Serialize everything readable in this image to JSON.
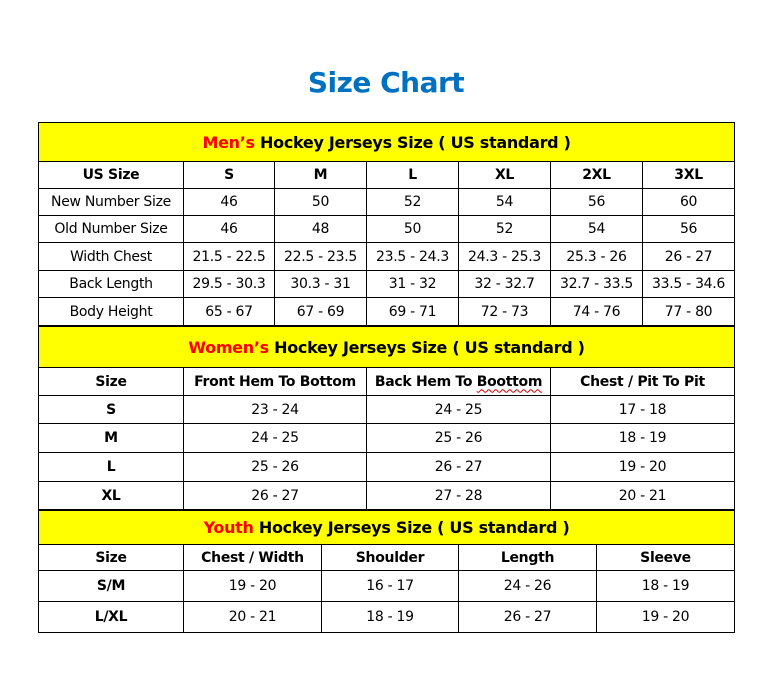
{
  "title": "Size Chart",
  "men": {
    "header_highlight": "Men’s",
    "header_rest": " Hockey Jerseys Size ( US standard )",
    "columns": [
      "US Size",
      "S",
      "M",
      "L",
      "XL",
      "2XL",
      "3XL"
    ],
    "rows": [
      [
        "New Number Size",
        "46",
        "50",
        "52",
        "54",
        "56",
        "60"
      ],
      [
        "Old Number Size",
        "46",
        "48",
        "50",
        "52",
        "54",
        "56"
      ],
      [
        "Width Chest",
        "21.5 - 22.5",
        "22.5 - 23.5",
        "23.5 - 24.3",
        "24.3 - 25.3",
        "25.3 - 26",
        "26 - 27"
      ],
      [
        "Back Length",
        "29.5 - 30.3",
        "30.3 - 31",
        "31 - 32",
        "32 - 32.7",
        "32.7 - 33.5",
        "33.5 - 34.6"
      ],
      [
        "Body Height",
        "65 - 67",
        "67 - 69",
        "69 - 71",
        "72 - 73",
        "74 - 76",
        "77 - 80"
      ]
    ]
  },
  "women": {
    "header_highlight": "Women’s",
    "header_rest": " Hockey Jerseys Size ( US standard )",
    "columns": [
      "Size",
      "Front Hem To Bottom",
      "Back Hem To Boottom",
      "Chest / Pit To Pit"
    ],
    "rows": [
      [
        "S",
        "23 - 24",
        "24 - 25",
        "17 - 18"
      ],
      [
        "M",
        "24 - 25",
        "25 - 26",
        "18 - 19"
      ],
      [
        "L",
        "25 - 26",
        "26 - 27",
        "19 - 20"
      ],
      [
        "XL",
        "26 - 27",
        "27 - 28",
        "20 - 21"
      ]
    ]
  },
  "youth": {
    "header_highlight": "Youth",
    "header_rest": " Hockey Jerseys Size ( US standard )",
    "columns": [
      "Size",
      "Chest / Width",
      "Shoulder",
      "Length",
      "Sleeve"
    ],
    "rows": [
      [
        "S/M",
        "19 - 20",
        "16 - 17",
        "24 - 26",
        "18 - 19"
      ],
      [
        "L/XL",
        "20 - 21",
        "18 - 19",
        "26 - 27",
        "19 - 20"
      ]
    ]
  },
  "colors": {
    "title": "#0070C0",
    "header_bg": "#FFFF00",
    "highlight": "#FF0000"
  }
}
